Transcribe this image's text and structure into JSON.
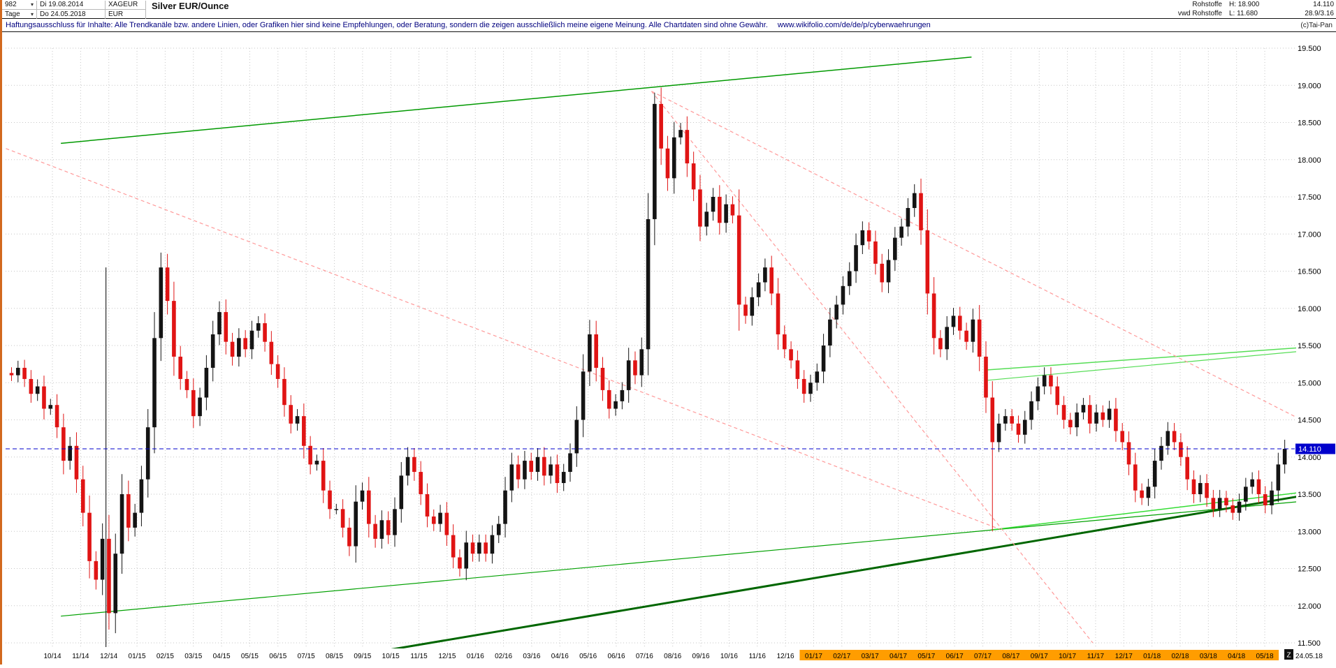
{
  "header": {
    "bars_value": "982",
    "start_date": "Di 19.08.2014",
    "symbol": "XAGEUR",
    "period": "Tage",
    "end_date": "Do 24.05.2018",
    "currency": "EUR",
    "title": "Silver EUR/Ounce",
    "group": "Rohstoffe",
    "source": "vwd Rohstoffe",
    "high_label": "H: 18.900",
    "low_label": "L: 11.680",
    "last_price": "14.110",
    "change_info": "28.9/3.16"
  },
  "disclaimer": {
    "text": "Haftungsausschluss für Inhalte: Alle Trendkanäle bzw. andere Linien, oder Grafiken hier sind keine Empfehlungen, oder Beratung, sondern die zeigen ausschließlich meine eigene Meinung. Alle Chartdaten sind ohne Gewähr.",
    "url": "www.wikifolio.com/de/de/p/cyberwaehrungen",
    "copyright": "(c)Tai-Pan"
  },
  "axis": {
    "y_labels": [
      "19.500",
      "19.000",
      "18.500",
      "18.000",
      "17.500",
      "17.000",
      "16.500",
      "16.000",
      "15.500",
      "15.000",
      "14.500",
      "14.000",
      "13.500",
      "13.000",
      "12.500",
      "12.000",
      "11.500"
    ],
    "x_labels": [
      "10/14",
      "11/14",
      "12/14",
      "01/15",
      "02/15",
      "03/15",
      "04/15",
      "05/15",
      "06/15",
      "07/15",
      "08/15",
      "09/15",
      "10/15",
      "11/15",
      "12/15",
      "01/16",
      "02/16",
      "03/16",
      "04/16",
      "05/16",
      "06/16",
      "07/16",
      "08/16",
      "09/16",
      "10/16",
      "11/16",
      "12/16",
      "01/17",
      "02/17",
      "03/17",
      "04/17",
      "05/17",
      "06/17",
      "07/17",
      "08/17",
      "09/17",
      "10/17",
      "11/17",
      "12/17",
      "01/18",
      "02/18",
      "03/18",
      "04/18",
      "05/18"
    ],
    "highlight_start_index": 27,
    "highlight_color": "#ff9d00",
    "z_label": "Z",
    "end_date_label": "24.05.18",
    "last_price_tag": "14.110"
  },
  "chart_data": {
    "type": "candlestick",
    "title": "Silver EUR/Ounce (XAGEUR), daily, 19.08.2014 - 24.05.2018",
    "x_unit": "months, 0 = 10/2014 gridline",
    "x_start_month": -1.45,
    "week_step_months": 0.2304,
    "ylim": [
      11.3,
      19.65
    ],
    "y_ticks": [
      19.5,
      19.0,
      18.5,
      18.0,
      17.5,
      17.0,
      16.5,
      16.0,
      15.5,
      15.0,
      14.5,
      14.0,
      13.5,
      13.0,
      12.5,
      12.0,
      11.5
    ],
    "high": 18.9,
    "low": 11.68,
    "last_price": 14.11,
    "weekly_closes": [
      15.1,
      15.2,
      15.05,
      14.85,
      14.95,
      14.65,
      14.7,
      14.4,
      13.95,
      14.15,
      13.7,
      13.25,
      12.6,
      12.35,
      12.9,
      11.9,
      12.7,
      13.5,
      13.05,
      13.25,
      13.7,
      14.4,
      15.6,
      16.55,
      16.1,
      15.35,
      15.05,
      14.9,
      14.55,
      14.8,
      15.2,
      15.65,
      15.95,
      15.55,
      15.35,
      15.6,
      15.45,
      15.7,
      15.8,
      15.55,
      15.25,
      15.05,
      14.7,
      14.45,
      14.55,
      14.15,
      13.9,
      13.95,
      13.55,
      13.3,
      13.3,
      13.05,
      12.8,
      13.4,
      13.55,
      13.1,
      12.9,
      13.15,
      12.95,
      13.3,
      13.75,
      14.0,
      13.8,
      13.5,
      13.2,
      13.1,
      13.25,
      12.95,
      12.65,
      12.5,
      12.85,
      12.7,
      12.85,
      12.7,
      12.95,
      13.1,
      13.55,
      13.9,
      13.7,
      13.95,
      13.8,
      14.0,
      13.75,
      13.9,
      13.65,
      13.8,
      14.05,
      14.5,
      15.15,
      15.65,
      15.2,
      14.9,
      14.65,
      14.75,
      14.9,
      15.3,
      15.1,
      15.45,
      17.2,
      18.75,
      18.15,
      17.75,
      18.3,
      18.4,
      17.95,
      17.6,
      17.1,
      17.3,
      17.5,
      17.15,
      17.4,
      17.25,
      16.05,
      15.9,
      16.15,
      16.35,
      16.55,
      16.2,
      15.65,
      15.45,
      15.3,
      15.05,
      14.85,
      15.0,
      15.15,
      15.5,
      15.85,
      16.05,
      16.3,
      16.5,
      16.85,
      17.05,
      16.9,
      16.6,
      16.35,
      16.65,
      16.95,
      17.1,
      17.35,
      17.55,
      17.05,
      16.2,
      15.6,
      15.45,
      15.75,
      15.9,
      15.7,
      15.55,
      15.85,
      15.35,
      14.8,
      14.2,
      14.45,
      14.55,
      14.45,
      14.3,
      14.5,
      14.75,
      14.95,
      15.1,
      14.95,
      14.7,
      14.5,
      14.4,
      14.6,
      14.7,
      14.45,
      14.6,
      14.5,
      14.65,
      14.35,
      14.2,
      13.9,
      13.55,
      13.45,
      13.6,
      13.95,
      14.15,
      14.35,
      14.2,
      14.0,
      13.7,
      13.5,
      13.65,
      13.45,
      13.3,
      13.45,
      13.35,
      13.25,
      13.4,
      13.6,
      13.7,
      13.5,
      13.35,
      13.55,
      13.9,
      14.11
    ],
    "spikes": [
      {
        "i": 15,
        "low": 11.68
      },
      {
        "i": 23,
        "high": 16.75
      },
      {
        "i": 99,
        "high": 18.9
      },
      {
        "i": 151,
        "low": 13.0
      }
    ],
    "cursor_line_month": 1.9,
    "cursor_line_top_price": 16.55,
    "trendlines": [
      {
        "name": "green-channel-upper",
        "color": "#009900",
        "width": 1.5,
        "dash": null,
        "p1": [
          0.3,
          18.22
        ],
        "p2": [
          32.6,
          19.38
        ]
      },
      {
        "name": "green-channel-lower",
        "color": "#00a000",
        "width": 1.2,
        "dash": null,
        "p1": [
          0.3,
          11.86
        ],
        "p2": [
          44.2,
          13.4
        ]
      },
      {
        "name": "green-support-thick",
        "color": "#006600",
        "width": 3,
        "dash": null,
        "p1": [
          10.9,
          11.34
        ],
        "p2": [
          44.2,
          13.47
        ]
      },
      {
        "name": "green-support-2018",
        "color": "#33dd33",
        "width": 1.5,
        "dash": null,
        "p1": [
          33.3,
          13.02
        ],
        "p2": [
          44.2,
          13.52
        ]
      },
      {
        "name": "green-resist-right-1",
        "color": "#55dd55",
        "width": 1.5,
        "dash": null,
        "p1": [
          33.1,
          15.17
        ],
        "p2": [
          44.2,
          15.47
        ]
      },
      {
        "name": "green-resist-right-2",
        "color": "#55dd55",
        "width": 1.2,
        "dash": null,
        "p1": [
          33.1,
          15.03
        ],
        "p2": [
          44.2,
          15.42
        ]
      },
      {
        "name": "red-downtrend-left",
        "color": "#ff9999",
        "width": 1.2,
        "dash": "5 4",
        "p1": [
          -1.65,
          18.15
        ],
        "p2": [
          33.6,
          13.03
        ]
      },
      {
        "name": "red-downtrend-from-peak-shallow",
        "color": "#ff9999",
        "width": 1.2,
        "dash": "5 4",
        "p1": [
          21.25,
          18.92
        ],
        "p2": [
          44.2,
          14.52
        ]
      },
      {
        "name": "red-downtrend-from-peak-steep",
        "color": "#ff9999",
        "width": 1.2,
        "dash": "5 4",
        "p1": [
          21.25,
          18.92
        ],
        "p2": [
          36.9,
          11.5
        ]
      }
    ],
    "colors": {
      "up": "#141414",
      "down": "#e01414",
      "grid": "#c6c6c6",
      "last_price_line": "#0000cc",
      "tag_bg": "#0000cc",
      "tag_text": "#ffffff",
      "cursor": "#000000"
    }
  }
}
